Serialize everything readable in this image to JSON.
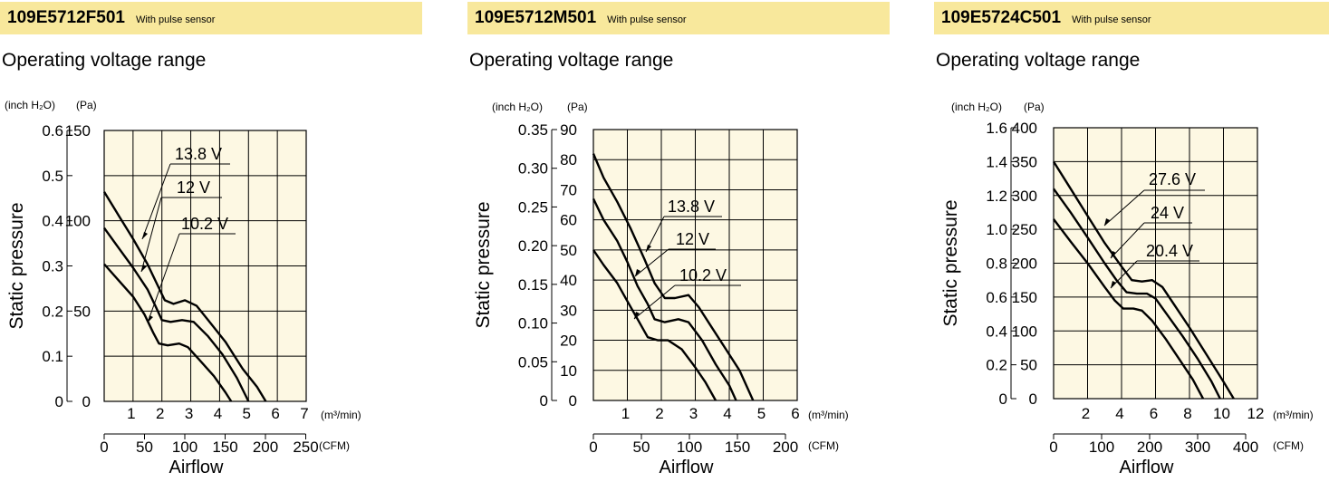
{
  "panels": [
    {
      "model": "109E5712F501",
      "subtitle": "With pulse sensor",
      "range_title": "Operating voltage range"
    },
    {
      "model": "109E5712M501",
      "subtitle": "With pulse sensor",
      "range_title": "Operating voltage range"
    },
    {
      "model": "109E5724C501",
      "subtitle": "With pulse sensor",
      "range_title": "Operating voltage range"
    }
  ],
  "chart_data": [
    {
      "type": "line",
      "title": "Operating voltage range",
      "ylabel": "Static pressure",
      "xlabel": "Airflow",
      "y_unit_inch": "(inch H₂O)",
      "y_unit_pa": "(Pa)",
      "x_unit_m3": "(m³/min)",
      "x_unit_cfm": "(CFM)",
      "xlim": [
        0,
        7
      ],
      "ylim": [
        0,
        150
      ],
      "x_ticks": [
        "1",
        "2",
        "3",
        "4",
        "5",
        "6",
        "7"
      ],
      "pa_ticks": [
        "0",
        "50",
        "100",
        "150"
      ],
      "inch_ticks": [
        "0",
        "0.1",
        "0.2",
        "0.3",
        "0.4",
        "0.5",
        "0.6"
      ],
      "cfm_ticks": [
        "0",
        "50",
        "100",
        "150",
        "200",
        "250"
      ],
      "series": [
        {
          "name": "13.8 V",
          "points": [
            [
              0,
              116
            ],
            [
              0.5,
              103
            ],
            [
              1,
              90
            ],
            [
              1.5,
              76
            ],
            [
              1.8,
              66
            ],
            [
              2.1,
              56
            ],
            [
              2.4,
              54
            ],
            [
              2.8,
              56
            ],
            [
              3.2,
              53
            ],
            [
              3.6,
              45
            ],
            [
              4.2,
              33
            ],
            [
              4.8,
              18
            ],
            [
              5.3,
              8
            ],
            [
              5.6,
              0
            ]
          ]
        },
        {
          "name": "12 V",
          "points": [
            [
              0,
              96
            ],
            [
              0.5,
              85
            ],
            [
              1,
              74
            ],
            [
              1.5,
              62
            ],
            [
              1.8,
              52
            ],
            [
              2,
              45
            ],
            [
              2.3,
              44
            ],
            [
              2.7,
              45
            ],
            [
              3.1,
              44
            ],
            [
              3.6,
              36
            ],
            [
              4.1,
              26
            ],
            [
              4.6,
              13
            ],
            [
              5,
              0
            ]
          ]
        },
        {
          "name": "10.2 V",
          "points": [
            [
              0,
              76
            ],
            [
              0.5,
              67
            ],
            [
              1,
              58
            ],
            [
              1.4,
              48
            ],
            [
              1.7,
              38
            ],
            [
              1.9,
              32
            ],
            [
              2.2,
              31
            ],
            [
              2.6,
              32
            ],
            [
              2.9,
              30
            ],
            [
              3.3,
              23
            ],
            [
              3.8,
              14
            ],
            [
              4.2,
              5
            ],
            [
              4.4,
              0
            ]
          ]
        }
      ]
    },
    {
      "type": "line",
      "title": "Operating voltage range",
      "ylabel": "Static pressure",
      "xlabel": "Airflow",
      "y_unit_inch": "(inch H₂O)",
      "y_unit_pa": "(Pa)",
      "x_unit_m3": "(m³/min)",
      "x_unit_cfm": "(CFM)",
      "xlim": [
        0,
        6
      ],
      "ylim": [
        0,
        90
      ],
      "x_ticks": [
        "1",
        "2",
        "3",
        "4",
        "5",
        "6"
      ],
      "pa_ticks": [
        "0",
        "10",
        "20",
        "30",
        "40",
        "50",
        "60",
        "70",
        "80",
        "90"
      ],
      "inch_ticks": [
        "0",
        "0.05",
        "0.10",
        "0.15",
        "0.20",
        "0.25",
        "0.30",
        "0.35"
      ],
      "cfm_ticks": [
        "0",
        "50",
        "100",
        "150",
        "200"
      ],
      "series": [
        {
          "name": "13.8 V",
          "points": [
            [
              0,
              82
            ],
            [
              0.3,
              74
            ],
            [
              0.7,
              66
            ],
            [
              1.1,
              57
            ],
            [
              1.5,
              47
            ],
            [
              1.8,
              39
            ],
            [
              2.1,
              34
            ],
            [
              2.4,
              34
            ],
            [
              2.8,
              35
            ],
            [
              3.1,
              31
            ],
            [
              3.5,
              24
            ],
            [
              3.9,
              17
            ],
            [
              4.3,
              10
            ],
            [
              4.7,
              0
            ]
          ]
        },
        {
          "name": "12 V",
          "points": [
            [
              0,
              67
            ],
            [
              0.3,
              60
            ],
            [
              0.7,
              53
            ],
            [
              1,
              46
            ],
            [
              1.3,
              38
            ],
            [
              1.6,
              32
            ],
            [
              1.8,
              27
            ],
            [
              2.1,
              26
            ],
            [
              2.5,
              27
            ],
            [
              2.8,
              26
            ],
            [
              3.2,
              20
            ],
            [
              3.6,
              12
            ],
            [
              4,
              5
            ],
            [
              4.2,
              0
            ]
          ]
        },
        {
          "name": "10.2 V",
          "points": [
            [
              0,
              50
            ],
            [
              0.3,
              45
            ],
            [
              0.7,
              39
            ],
            [
              1,
              33
            ],
            [
              1.3,
              27
            ],
            [
              1.6,
              21
            ],
            [
              1.9,
              20
            ],
            [
              2.2,
              20
            ],
            [
              2.6,
              17
            ],
            [
              3,
              11
            ],
            [
              3.3,
              6
            ],
            [
              3.6,
              0
            ]
          ]
        }
      ]
    },
    {
      "type": "line",
      "title": "Operating voltage range",
      "ylabel": "Static pressure",
      "xlabel": "Airflow",
      "y_unit_inch": "(inch H₂O)",
      "y_unit_pa": "(Pa)",
      "x_unit_m3": "(m³/min)",
      "x_unit_cfm": "(CFM)",
      "xlim": [
        0,
        12
      ],
      "ylim": [
        0,
        400
      ],
      "x_ticks": [
        "2",
        "4",
        "6",
        "8",
        "10",
        "12"
      ],
      "pa_ticks": [
        "0",
        "50",
        "100",
        "150",
        "200",
        "250",
        "300",
        "350",
        "400"
      ],
      "inch_ticks": [
        "0",
        "0.2",
        "0.4",
        "0.6",
        "0.8",
        "1.0",
        "1.2",
        "1.4",
        "1.6"
      ],
      "cfm_ticks": [
        "0",
        "100",
        "200",
        "300",
        "400"
      ],
      "series": [
        {
          "name": "27.6 V",
          "points": [
            [
              0,
              350
            ],
            [
              1,
              310
            ],
            [
              2,
              270
            ],
            [
              3,
              230
            ],
            [
              4,
              195
            ],
            [
              4.6,
              175
            ],
            [
              5.2,
              173
            ],
            [
              5.8,
              175
            ],
            [
              6.4,
              165
            ],
            [
              7.2,
              135
            ],
            [
              8,
              105
            ],
            [
              9,
              65
            ],
            [
              10,
              25
            ],
            [
              10.6,
              0
            ]
          ]
        },
        {
          "name": "24 V",
          "points": [
            [
              0,
              310
            ],
            [
              1,
              275
            ],
            [
              2,
              238
            ],
            [
              3,
              200
            ],
            [
              3.7,
              175
            ],
            [
              4.3,
              157
            ],
            [
              4.9,
              155
            ],
            [
              5.5,
              155
            ],
            [
              6,
              148
            ],
            [
              6.8,
              120
            ],
            [
              7.6,
              92
            ],
            [
              8.5,
              58
            ],
            [
              9.3,
              25
            ],
            [
              9.8,
              0
            ]
          ]
        },
        {
          "name": "20.4 V",
          "points": [
            [
              0,
              265
            ],
            [
              1,
              232
            ],
            [
              2,
              200
            ],
            [
              3,
              165
            ],
            [
              3.6,
              145
            ],
            [
              4.1,
              133
            ],
            [
              4.7,
              133
            ],
            [
              5.2,
              130
            ],
            [
              5.8,
              115
            ],
            [
              6.6,
              88
            ],
            [
              7.4,
              58
            ],
            [
              8.2,
              28
            ],
            [
              8.8,
              0
            ]
          ]
        }
      ]
    }
  ]
}
